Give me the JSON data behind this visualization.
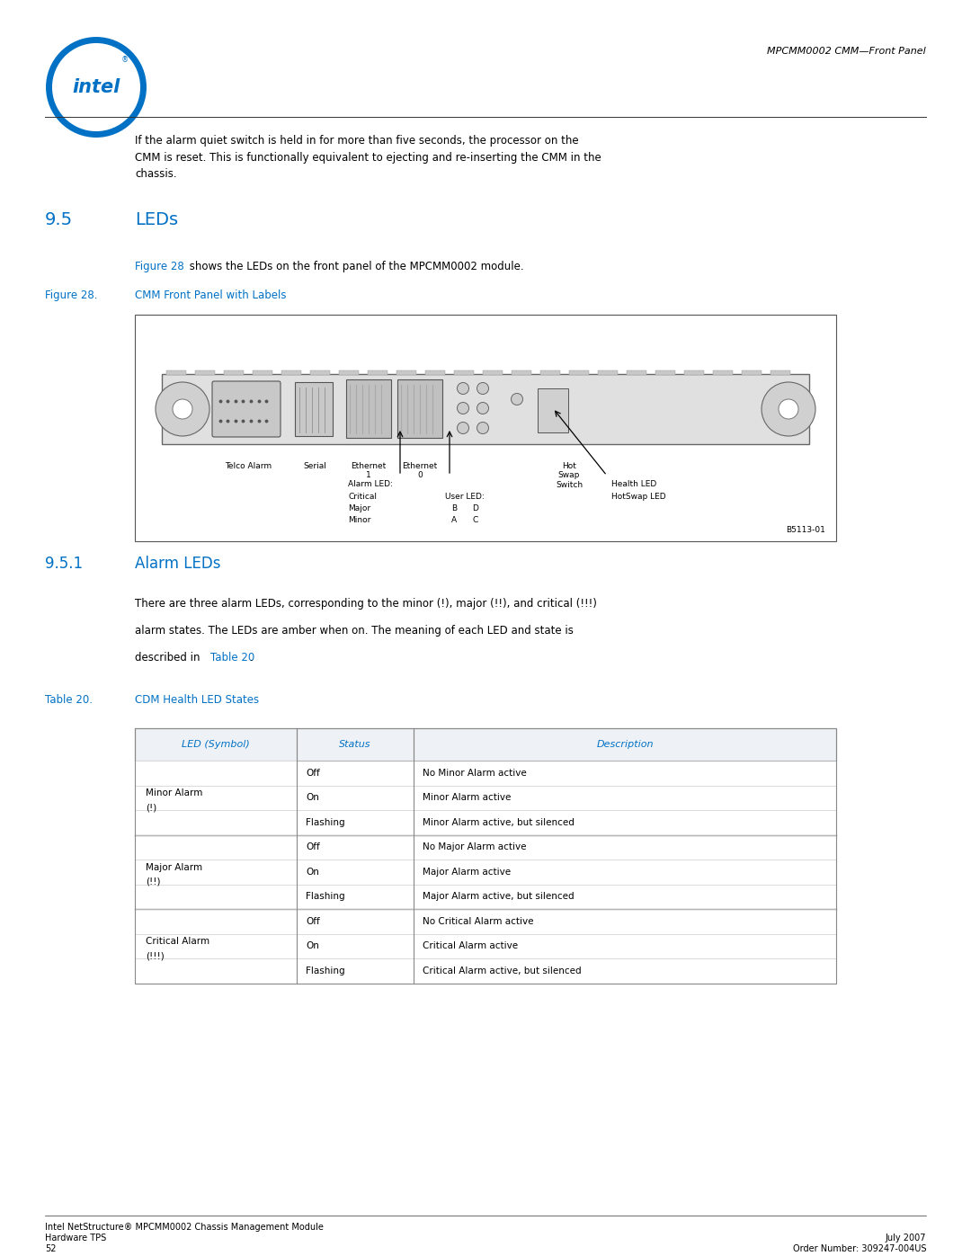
{
  "page_width": 10.8,
  "page_height": 13.97,
  "bg_color": "#ffffff",
  "header_text": "MPCMM0002 CMM—Front Panel",
  "blue_color": "#0071c5",
  "black_color": "#000000",
  "body_text_intro": "If the alarm quiet switch is held in for more than five seconds, the processor on the\nCMM is reset. This is functionally equivalent to ejecting and re-inserting the CMM in the\nchassis.",
  "section_95_num": "9.5",
  "section_95_title": "LEDs",
  "fig28_ref_text": "Figure 28",
  "fig28_ref_rest": " shows the LEDs on the front panel of the MPCMM0002 module.",
  "fig28_label": "Figure 28.",
  "fig28_title": "CMM Front Panel with Labels",
  "section_951_num": "9.5.1",
  "section_951_title": "Alarm LEDs",
  "body_951_line1": "There are three alarm LEDs, corresponding to the minor (!), major (!!), and critical (!!!)",
  "body_951_line2": "alarm states. The LEDs are amber when on. The meaning of each LED and state is",
  "body_951_line3_pre": "described in ",
  "body_951_link": "Table 20",
  "body_951_end": ".",
  "table20_label": "Table 20.",
  "table20_title": "CDM Health LED States",
  "table_header": [
    "LED (Symbol)",
    "Status",
    "Description"
  ],
  "table_groups": [
    {
      "led": "Minor Alarm\n(!)",
      "rows": [
        [
          "Off",
          "No Minor Alarm active"
        ],
        [
          "On",
          "Minor Alarm active"
        ],
        [
          "Flashing",
          "Minor Alarm active, but silenced"
        ]
      ]
    },
    {
      "led": "Major Alarm\n(!!)",
      "rows": [
        [
          "Off",
          "No Major Alarm active"
        ],
        [
          "On",
          "Major Alarm active"
        ],
        [
          "Flashing",
          "Major Alarm active, but silenced"
        ]
      ]
    },
    {
      "led": "Critical Alarm\n(!!!)",
      "rows": [
        [
          "Off",
          "No Critical Alarm active"
        ],
        [
          "On",
          "Critical Alarm active"
        ],
        [
          "Flashing",
          "Critical Alarm active, but silenced"
        ]
      ]
    }
  ],
  "footer_left1": "Intel NetStructure® MPCMM0002 Chassis Management Module",
  "footer_left2": "Hardware TPS",
  "footer_left3": "52",
  "footer_right1": "July 2007",
  "footer_right2": "Order Number: 309247-004US"
}
